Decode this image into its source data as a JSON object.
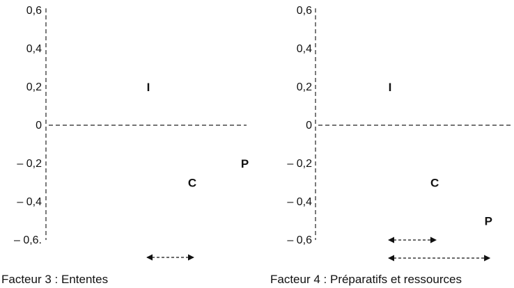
{
  "chart_data": [
    {
      "type": "scatter",
      "title": "Facteur 3 : Ententes",
      "y_tick_labels": [
        "0,6",
        "0,4",
        "0,2",
        "0",
        "– 0,2",
        "– 0,4",
        "– 0,6."
      ],
      "ylim": [
        -0.6,
        0.6
      ],
      "points": [
        {
          "label": "I",
          "x": 0.35,
          "y": 0.2
        },
        {
          "label": "C",
          "x": 0.5,
          "y": -0.3
        },
        {
          "label": "P",
          "x": 0.68,
          "y": -0.2
        }
      ],
      "arrows": [
        {
          "from": 0.35,
          "to": 0.5
        }
      ]
    },
    {
      "type": "scatter",
      "title": "Facteur 4 : Préparatifs et ressources",
      "y_tick_labels": [
        "0,6",
        "0,4",
        "0,2",
        "0",
        "– 0,2",
        "– 0,4",
        "– 0,6"
      ],
      "ylim": [
        -0.6,
        0.6
      ],
      "points": [
        {
          "label": "I",
          "x": 0.25,
          "y": 0.2
        },
        {
          "label": "C",
          "x": 0.4,
          "y": -0.3
        },
        {
          "label": "P",
          "x": 0.58,
          "y": -0.5
        }
      ],
      "arrows": [
        {
          "from": 0.25,
          "to": 0.4
        },
        {
          "from": 0.25,
          "to": 0.58
        }
      ]
    }
  ]
}
